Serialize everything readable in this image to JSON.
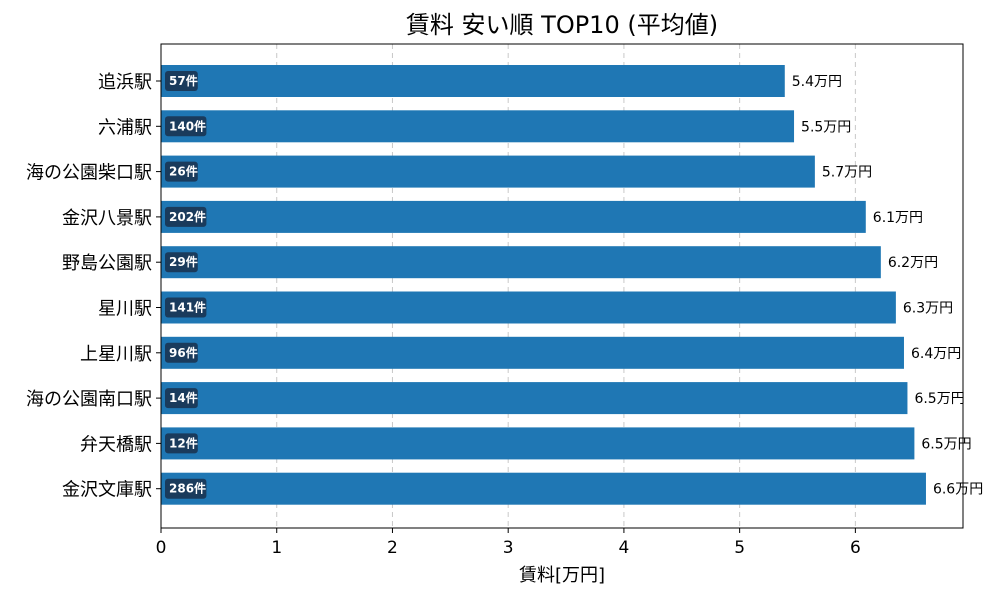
{
  "chart_data": {
    "type": "bar",
    "orientation": "horizontal",
    "title": "賃料 安い順 TOP10 (平均値)",
    "xlabel": "賃料[万円]",
    "ylabel": "",
    "xlim": [
      0,
      6.93
    ],
    "xticks": [
      "0",
      "1",
      "2",
      "3",
      "4",
      "5",
      "6"
    ],
    "grid": "x-dashed",
    "bar_color": "#1f77b4",
    "badge_color": "#1a3b5c",
    "categories": [
      "追浜駅",
      "六浦駅",
      "海の公園柴口駅",
      "金沢八景駅",
      "野島公園駅",
      "星川駅",
      "上星川駅",
      "海の公園南口駅",
      "弁天橋駅",
      "金沢文庫駅"
    ],
    "values": [
      5.39,
      5.47,
      5.65,
      6.09,
      6.22,
      6.35,
      6.42,
      6.45,
      6.51,
      6.61
    ],
    "value_labels": [
      "5.4万円",
      "5.5万円",
      "5.7万円",
      "6.1万円",
      "6.2万円",
      "6.3万円",
      "6.4万円",
      "6.5万円",
      "6.5万円",
      "6.6万円"
    ],
    "count_labels": [
      "57件",
      "140件",
      "26件",
      "202件",
      "29件",
      "141件",
      "96件",
      "14件",
      "12件",
      "286件"
    ]
  }
}
